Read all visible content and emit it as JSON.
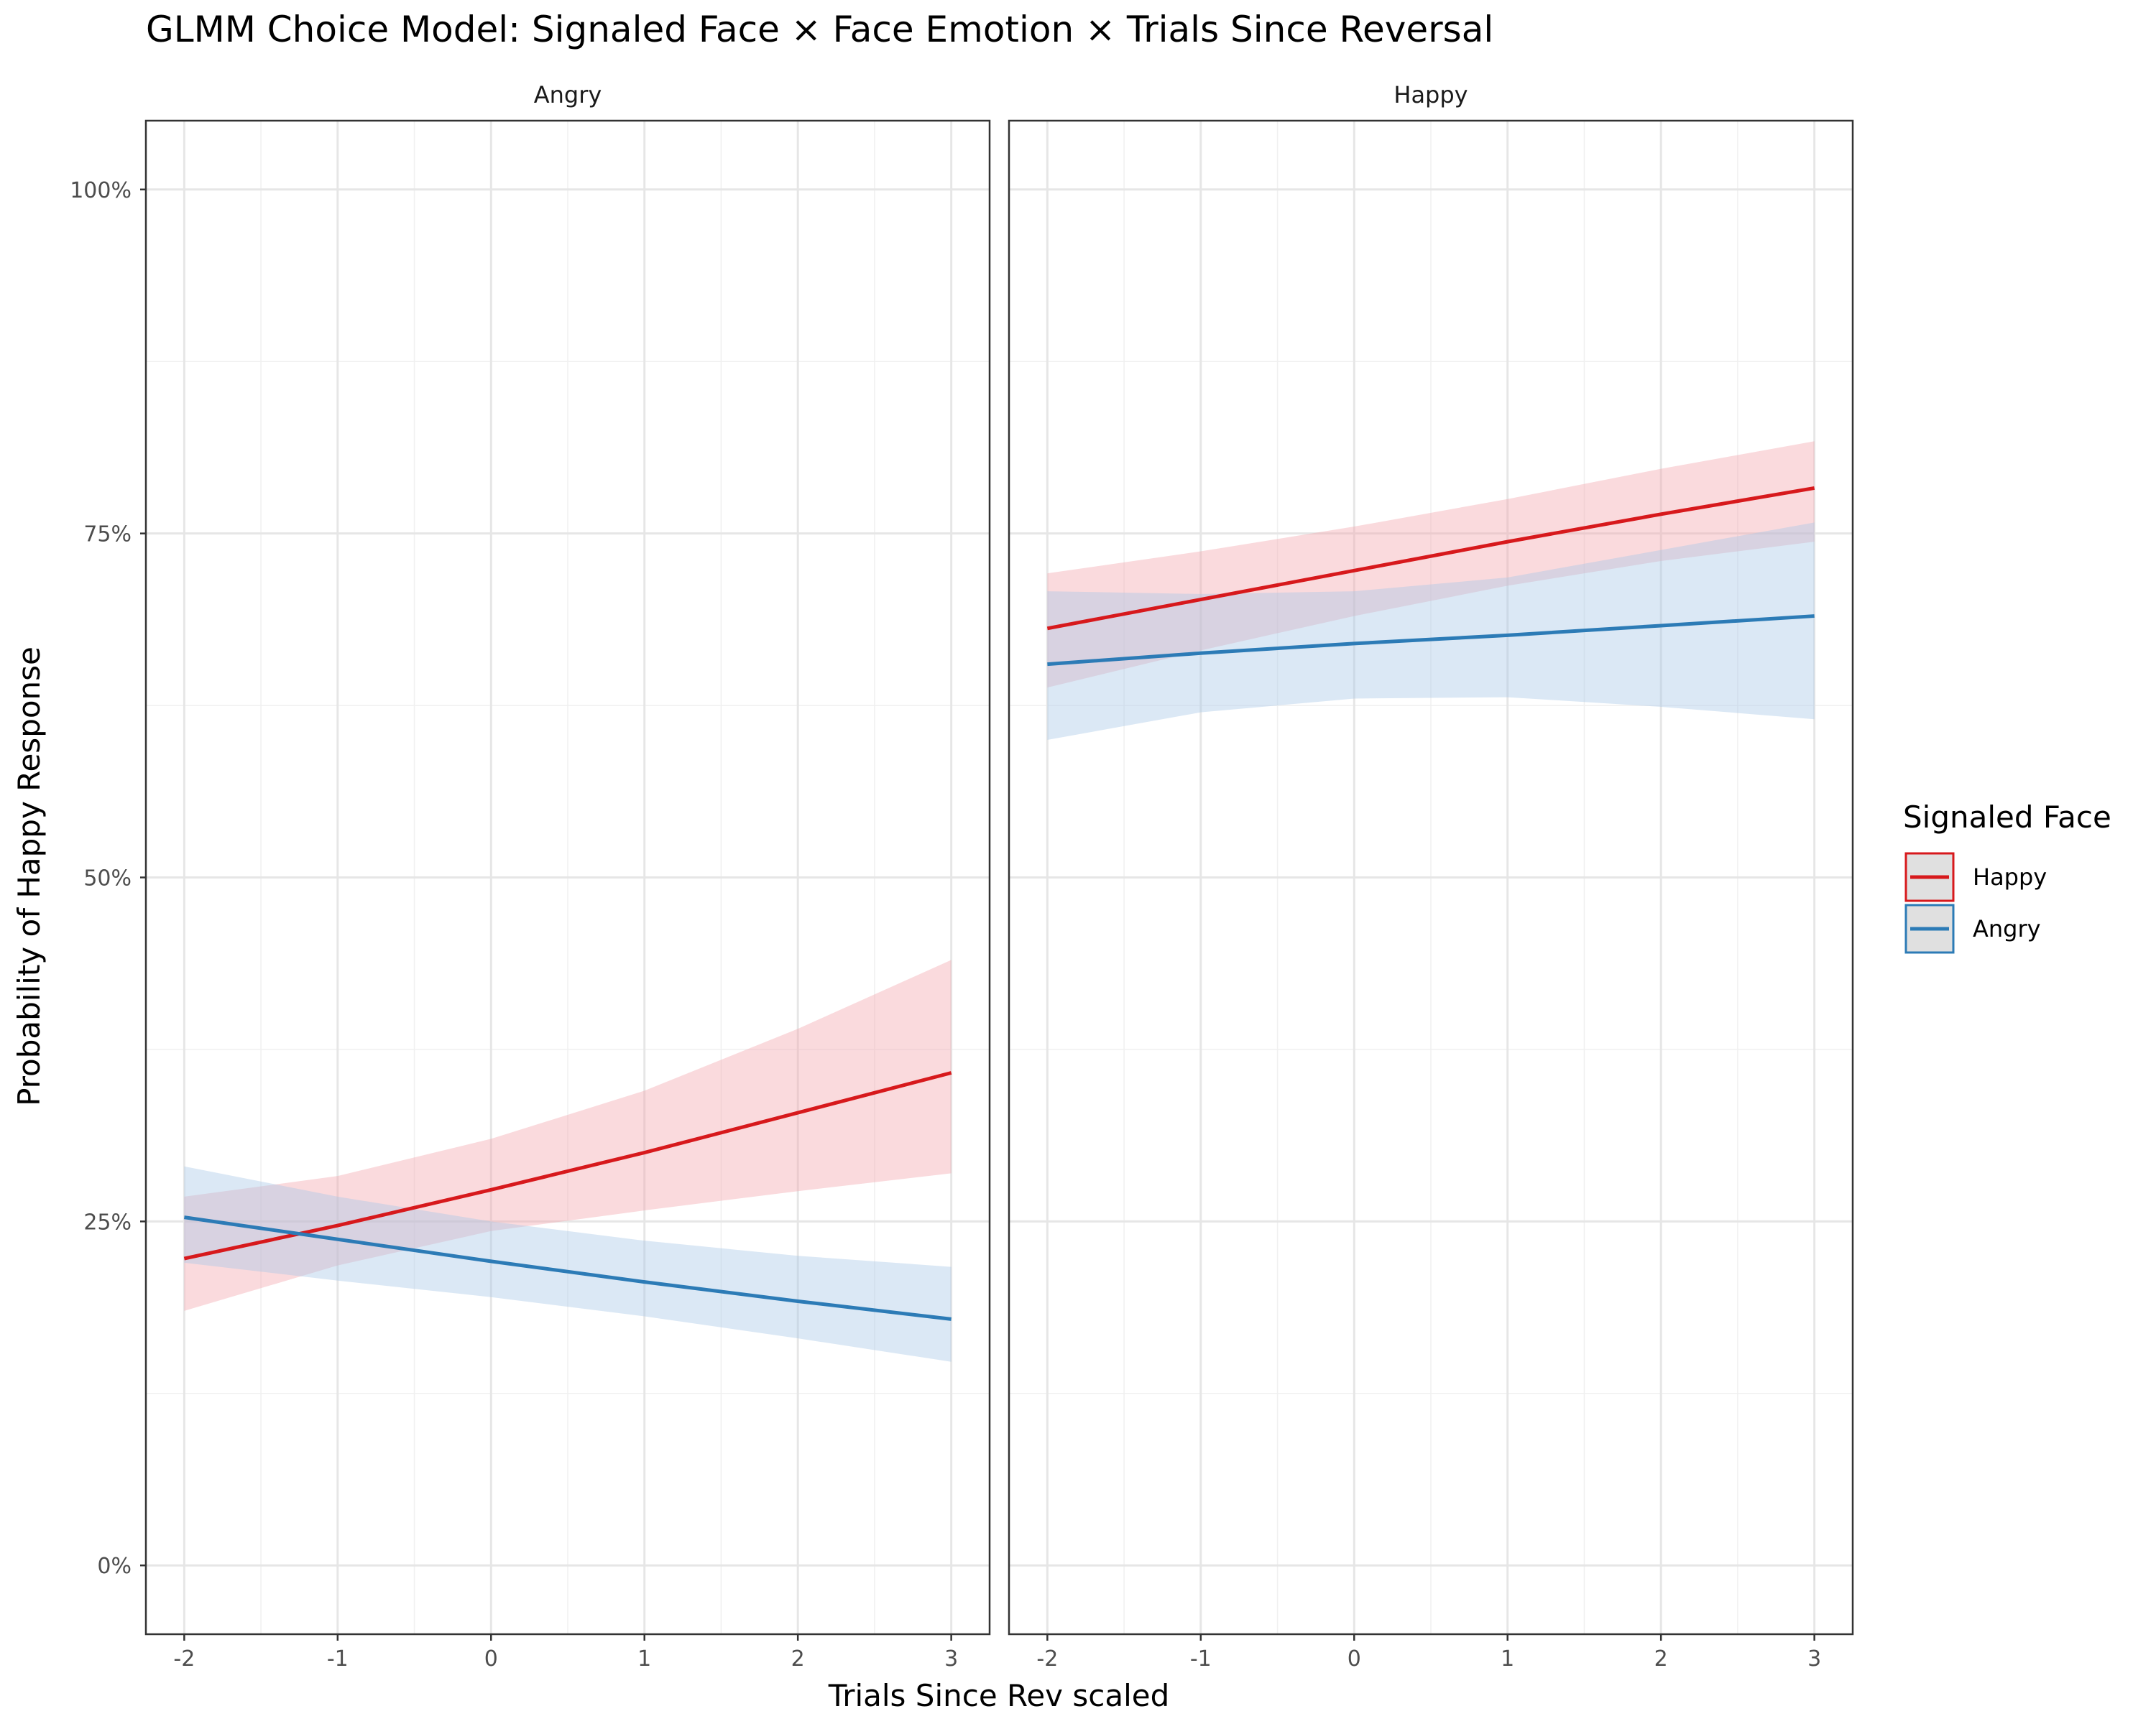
{
  "chart_data": {
    "type": "line",
    "title": "GLMM Choice Model: Signaled Face × Face Emotion × Trials Since Reversal",
    "xlabel": "Trials Since Rev scaled",
    "ylabel": "Probability of Happy Response",
    "xlim": [
      -2.25,
      3.25
    ],
    "ylim": [
      -0.05,
      1.05
    ],
    "x_ticks": [
      -2,
      -1,
      0,
      1,
      2,
      3
    ],
    "x_tick_labels": [
      "-2",
      "-1",
      "0",
      "1",
      "2",
      "3"
    ],
    "y_ticks": [
      0,
      0.25,
      0.5,
      0.75,
      1
    ],
    "y_tick_labels": [
      "0%",
      "25%",
      "50%",
      "75%",
      "100%"
    ],
    "grid": true,
    "legend": {
      "title": "Signaled Face",
      "position": "right",
      "entries": [
        {
          "label": "Happy",
          "color": "#d7191c"
        },
        {
          "label": "Angry",
          "color": "#2c7bb6"
        }
      ]
    },
    "panels": [
      {
        "label": "Angry",
        "series": [
          {
            "name": "Happy",
            "color": "#d7191c",
            "band_color": "#f4a6ad",
            "x": [
              -2,
              -1,
              0,
              1,
              2,
              3
            ],
            "y": [
              0.223,
              0.247,
              0.273,
              0.3,
              0.329,
              0.358
            ],
            "lower": [
              0.185,
              0.218,
              0.243,
              0.258,
              0.272,
              0.285
            ],
            "upper": [
              0.268,
              0.283,
              0.31,
              0.345,
              0.39,
              0.44
            ]
          },
          {
            "name": "Angry",
            "color": "#2c7bb6",
            "band_color": "#a9c8e6",
            "x": [
              -2,
              -1,
              0,
              1,
              2,
              3
            ],
            "y": [
              0.253,
              0.237,
              0.221,
              0.206,
              0.192,
              0.179
            ],
            "lower": [
              0.22,
              0.207,
              0.195,
              0.181,
              0.165,
              0.148
            ],
            "upper": [
              0.29,
              0.268,
              0.25,
              0.236,
              0.225,
              0.217
            ]
          }
        ]
      },
      {
        "label": "Happy",
        "series": [
          {
            "name": "Happy",
            "color": "#d7191c",
            "band_color": "#f4a6ad",
            "x": [
              -2,
              -1,
              0,
              1,
              2,
              3
            ],
            "y": [
              0.681,
              0.702,
              0.723,
              0.744,
              0.764,
              0.783
            ],
            "lower": [
              0.638,
              0.665,
              0.69,
              0.712,
              0.73,
              0.744
            ],
            "upper": [
              0.721,
              0.737,
              0.755,
              0.775,
              0.797,
              0.817
            ]
          },
          {
            "name": "Angry",
            "color": "#2c7bb6",
            "band_color": "#a9c8e6",
            "x": [
              -2,
              -1,
              0,
              1,
              2,
              3
            ],
            "y": [
              0.655,
              0.663,
              0.67,
              0.676,
              0.683,
              0.69
            ],
            "lower": [
              0.6,
              0.62,
              0.63,
              0.631,
              0.624,
              0.615
            ],
            "upper": [
              0.708,
              0.706,
              0.708,
              0.718,
              0.738,
              0.758
            ]
          }
        ]
      }
    ]
  }
}
